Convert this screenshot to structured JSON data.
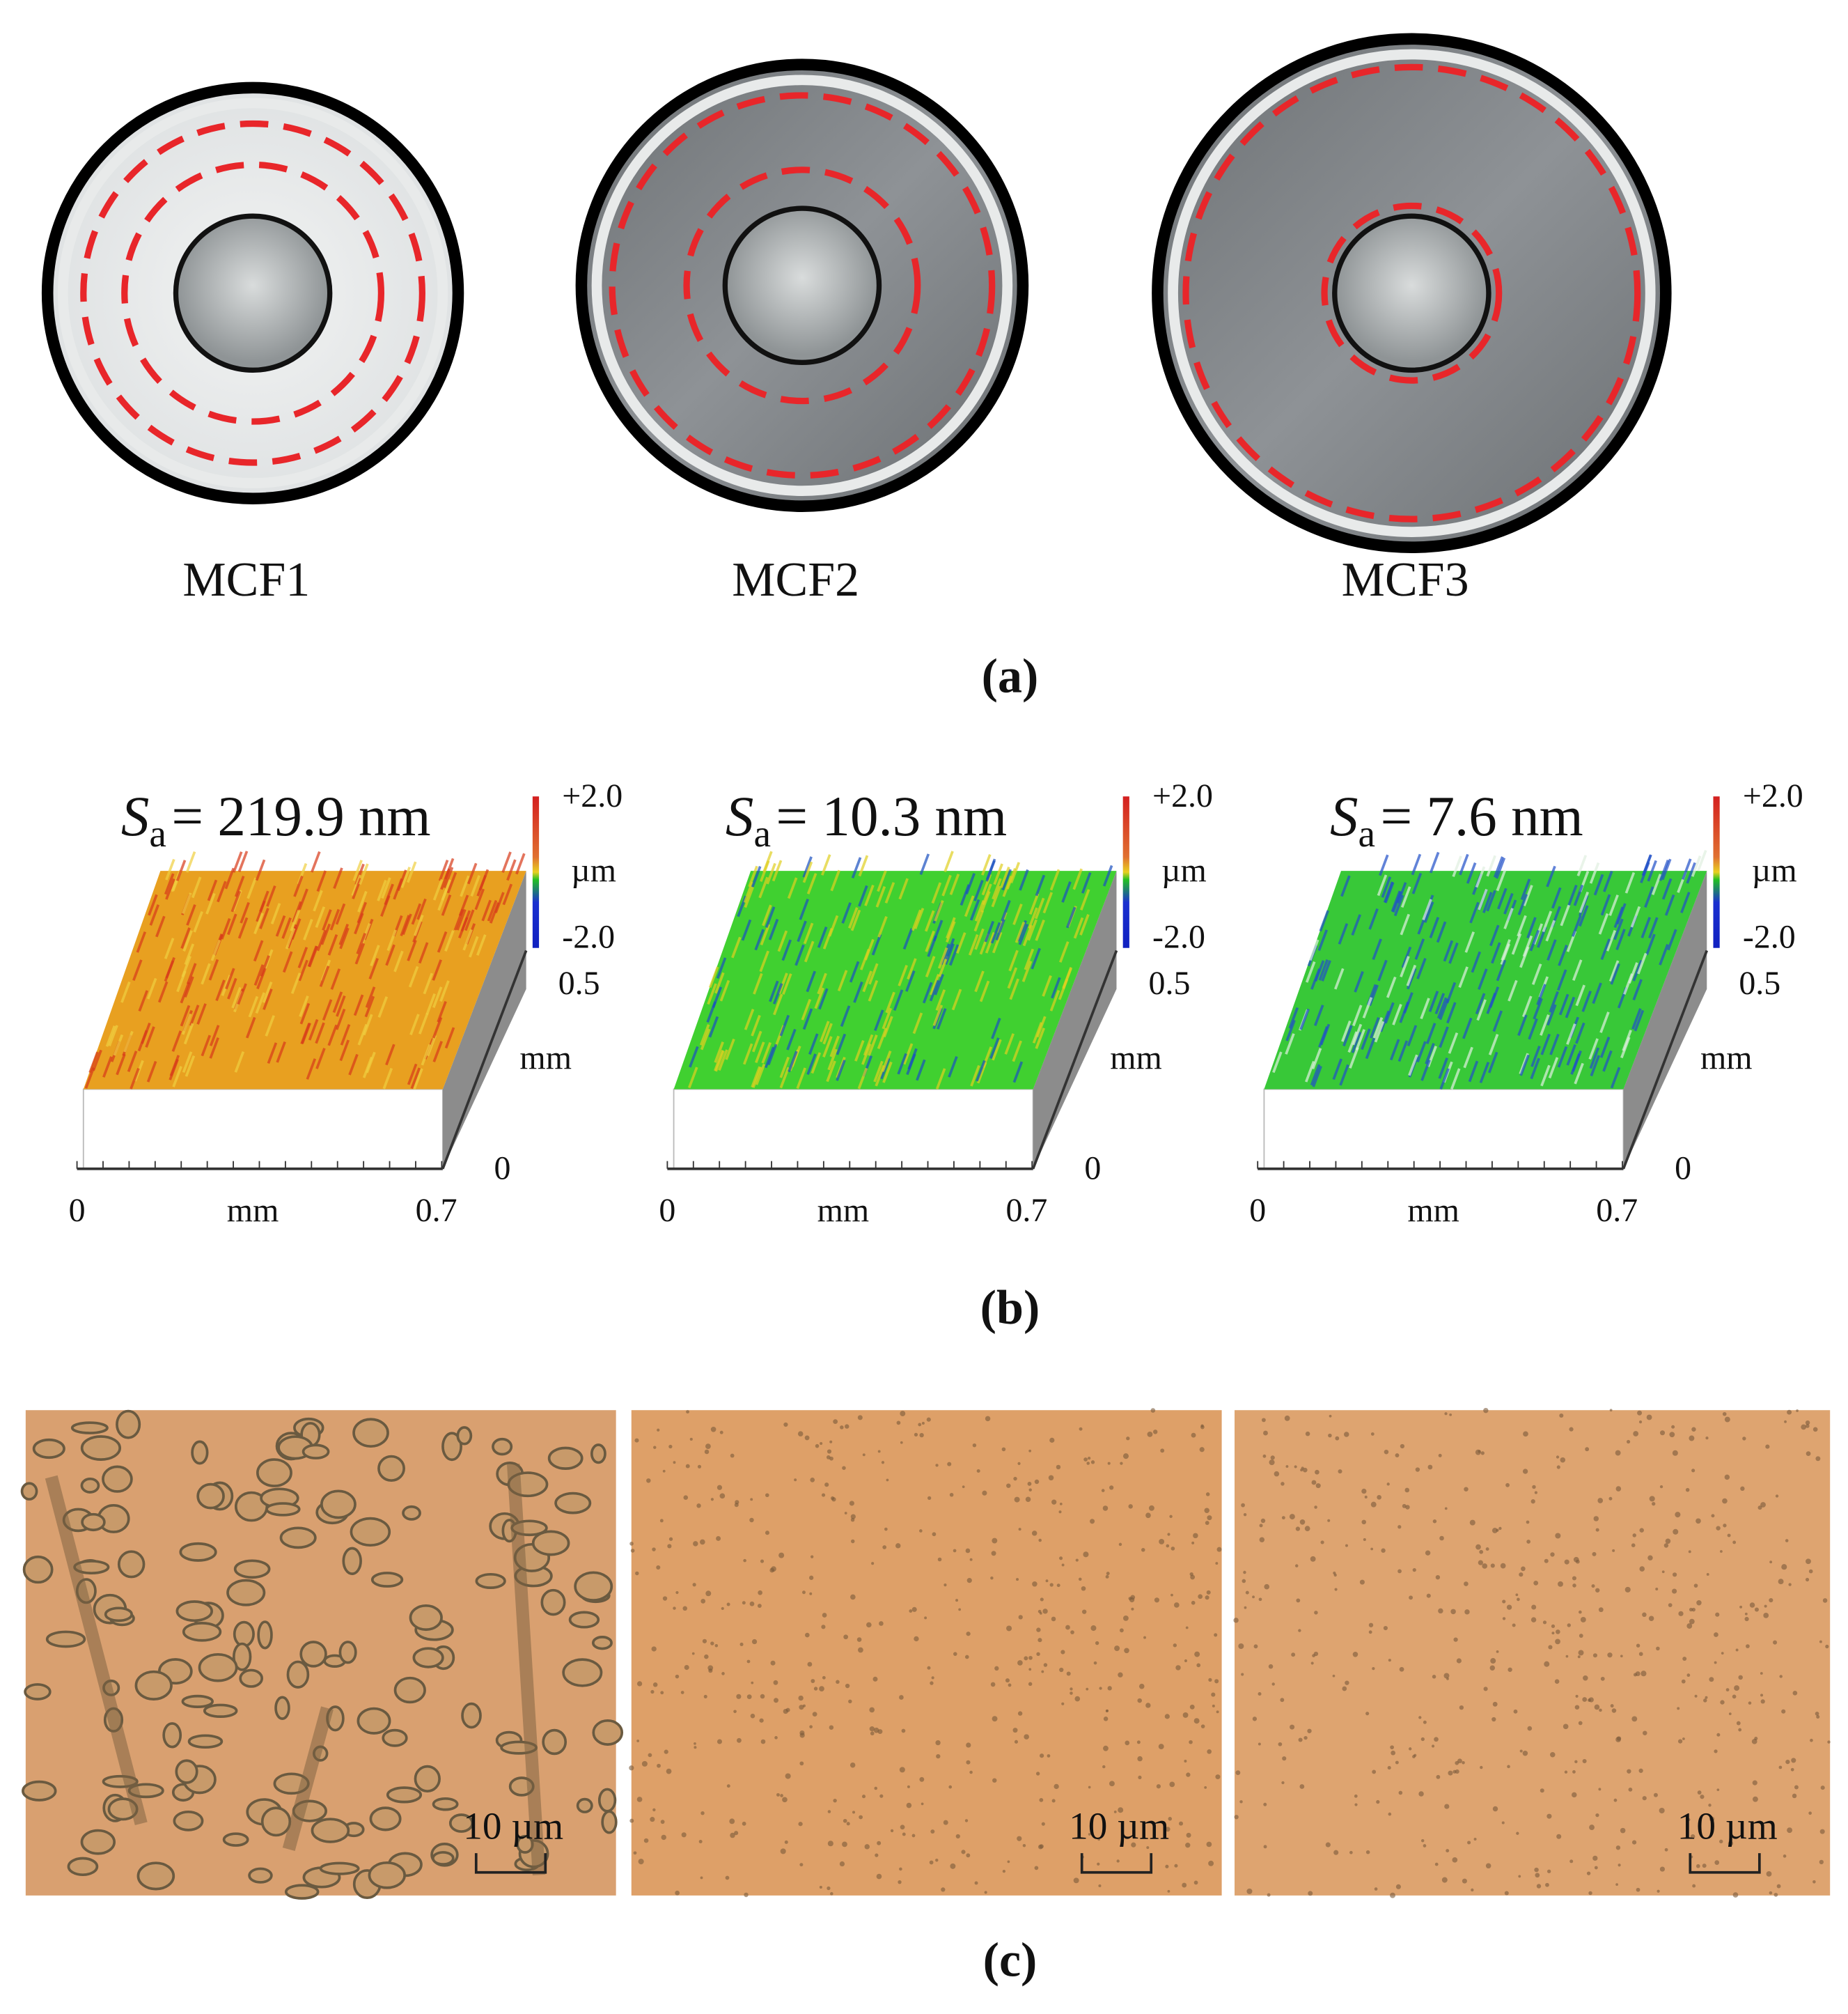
{
  "panel_a": {
    "label": "(a)",
    "samples": [
      "MCF1",
      "MCF2",
      "MCF3"
    ]
  },
  "panel_b": {
    "label": "(b)",
    "surfaces": [
      {
        "sa_symbol": "S",
        "sa_subscript": "a",
        "sa_value": "= 219.9 nm",
        "scale_max": "+2.0",
        "scale_unit": "µm",
        "scale_min": "-2.0",
        "y_max": "0.5",
        "y_unit": "mm",
        "y_min": "0",
        "x_min": "0",
        "x_unit": "mm",
        "x_max": "0.7"
      },
      {
        "sa_symbol": "S",
        "sa_subscript": "a",
        "sa_value": "= 10.3 nm",
        "scale_max": "+2.0",
        "scale_unit": "µm",
        "scale_min": "-2.0",
        "y_max": "0.5",
        "y_unit": "mm",
        "y_min": "0",
        "x_min": "0",
        "x_unit": "mm",
        "x_max": "0.7"
      },
      {
        "sa_symbol": "S",
        "sa_subscript": "a",
        "sa_value": "= 7.6 nm",
        "scale_max": "+2.0",
        "scale_unit": "µm",
        "scale_min": "-2.0",
        "y_max": "0.5",
        "y_unit": "mm",
        "y_min": "0",
        "x_min": "0",
        "x_unit": "mm",
        "x_max": "0.7"
      }
    ]
  },
  "panel_c": {
    "label": "(c)",
    "scale_bars": [
      "10 µm",
      "10 µm",
      "10 µm"
    ]
  }
}
